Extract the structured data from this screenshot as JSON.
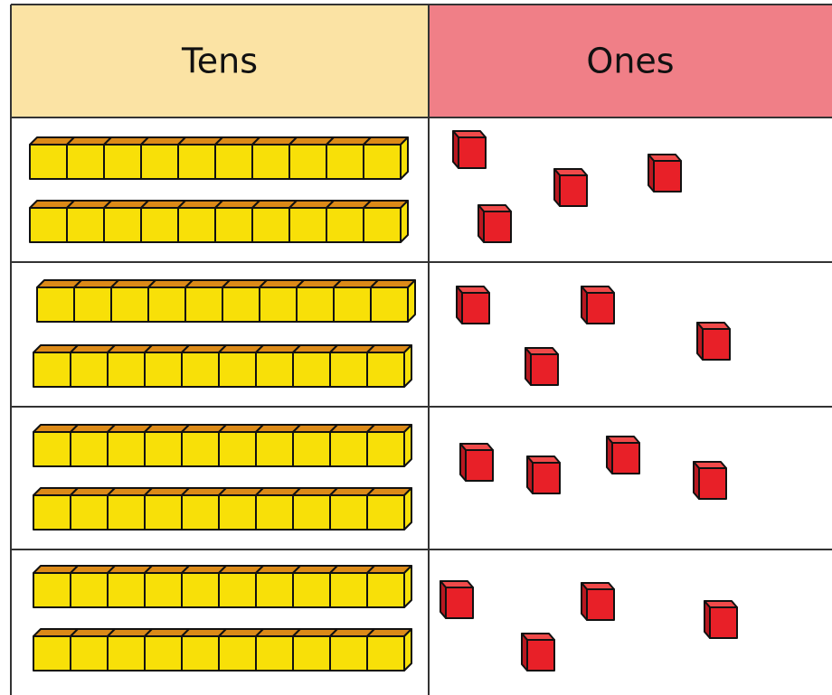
{
  "header": {
    "tens": "Tens",
    "ones": "Ones"
  }
}
